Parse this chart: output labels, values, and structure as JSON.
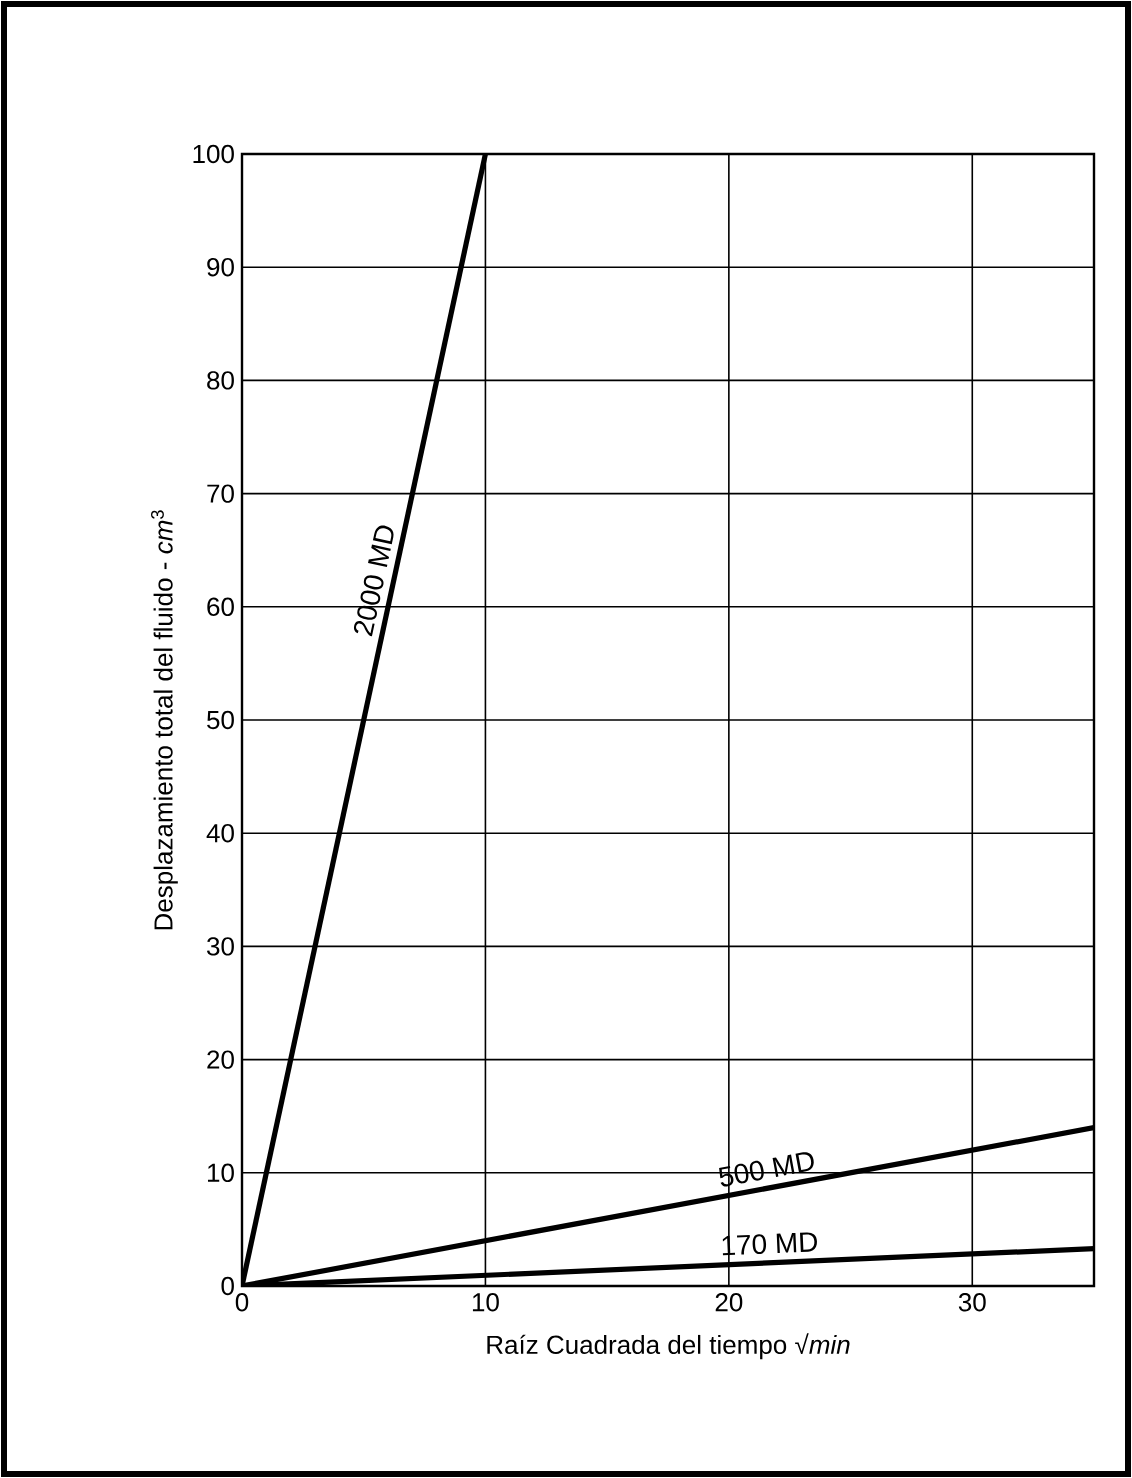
{
  "chart_data": {
    "type": "line",
    "xlabel": "Raíz Cuadrada del tiempo √*min*",
    "ylabel": "Desplazamiento total del fluido - *cm*$^{3}$",
    "xlim": [
      0,
      35
    ],
    "ylim": [
      0,
      100
    ],
    "xticks": [
      0,
      10,
      20,
      30
    ],
    "yticks": [
      0,
      10,
      20,
      30,
      40,
      50,
      60,
      70,
      80,
      90,
      100
    ],
    "grid": true,
    "legend": false,
    "marker": "none",
    "line_style": "solid",
    "series": [
      {
        "name": "2000 MD",
        "color": "#000000",
        "x": [
          0,
          10
        ],
        "values": [
          0,
          100
        ]
      },
      {
        "name": "500 MD",
        "color": "#000000",
        "x": [
          0,
          35
        ],
        "values": [
          0,
          14
        ]
      },
      {
        "name": "170 MD",
        "color": "#000000",
        "x": [
          0,
          35
        ],
        "values": [
          0,
          3.3
        ]
      }
    ]
  }
}
